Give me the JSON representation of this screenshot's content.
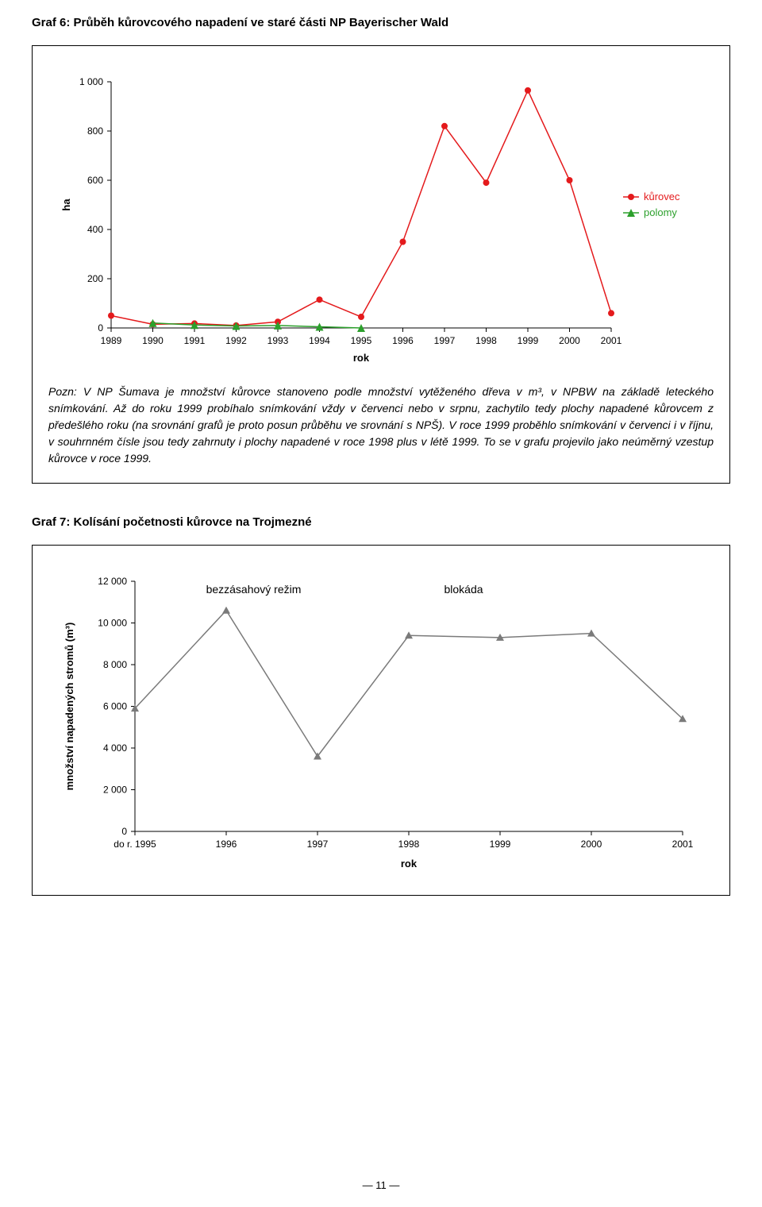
{
  "heading1": "Graf 6: Průběh kůrovcového napadení ve staré části NP Bayerischer Wald",
  "heading2": "Graf 7: Kolísání početnosti kůrovce na Trojmezné",
  "caption": "Pozn: V NP Šumava je množství kůrovce stanoveno podle množství vytěženého dřeva v m³, v NPBW na základě leteckého snímkování. Až do roku 1999 probíhalo snímkování vždy v červenci nebo v srpnu, zachytilo tedy plochy napadené kůrovcem z předešlého roku (na srovnání grafů je proto posun průběhu ve srovnání s NPŠ). V roce 1999 proběhlo snímkování v červenci i v říjnu, v souhrnném čísle jsou tedy zahrnuty i plochy napadené v roce 1998 plus v létě 1999. To se v grafu projevilo jako neúměrný vzestup kůrovce v roce 1999.",
  "page_number": "— 11 —",
  "chart1": {
    "type": "line",
    "ylabel": "ha",
    "xlabel": "rok",
    "ylim": [
      0,
      1000
    ],
    "ytick_step": 200,
    "yticks": [
      0,
      200,
      400,
      600,
      800,
      1000
    ],
    "xticks": [
      1989,
      1990,
      1991,
      1992,
      1993,
      1994,
      1995,
      1996,
      1997,
      1998,
      1999,
      2000,
      2001
    ],
    "series": [
      {
        "name": "kůrovec",
        "color": "#e41a1c",
        "marker": "circle",
        "x": [
          1989,
          1990,
          1991,
          1992,
          1993,
          1994,
          1995,
          1996,
          1997,
          1998,
          1999,
          2000,
          2001
        ],
        "y": [
          50,
          15,
          18,
          10,
          25,
          115,
          45,
          350,
          820,
          590,
          965,
          600,
          60
        ]
      },
      {
        "name": "polomy",
        "color": "#2ca02c",
        "marker": "triangle",
        "x": [
          1990,
          1991,
          1992,
          1993,
          1994,
          1995
        ],
        "y": [
          20,
          12,
          8,
          10,
          5,
          0
        ]
      }
    ],
    "background_color": "#ffffff",
    "axis_color": "#000000",
    "marker_size": 4,
    "line_width": 1.5
  },
  "chart2": {
    "type": "line",
    "ylabel": "množství napadených stromů (m³)",
    "xlabel": "rok",
    "ylim": [
      0,
      12000
    ],
    "ytick_step": 2000,
    "yticks": [
      0,
      2000,
      4000,
      6000,
      8000,
      10000,
      12000
    ],
    "ytick_labels": [
      "0",
      "2 000",
      "4 000",
      "6 000",
      "8 000",
      "10 000",
      "12 000"
    ],
    "xticks": [
      "do r. 1995",
      "1996",
      "1997",
      "1998",
      "1999",
      "2000",
      "2001"
    ],
    "annotations": [
      {
        "text": "bezzásahový režim",
        "x_index": 1.3,
        "y": 12000
      },
      {
        "text": "blokáda",
        "x_index": 3.6,
        "y": 12000
      }
    ],
    "series": [
      {
        "name": "main",
        "color": "#7a7a7a",
        "marker": "triangle",
        "x_index": [
          0,
          1,
          2,
          3,
          4,
          5,
          6
        ],
        "y": [
          5900,
          10600,
          3600,
          9400,
          9300,
          9500,
          5400
        ]
      }
    ],
    "background_color": "#ffffff",
    "axis_color": "#000000",
    "marker_size": 5,
    "line_width": 1.5
  }
}
